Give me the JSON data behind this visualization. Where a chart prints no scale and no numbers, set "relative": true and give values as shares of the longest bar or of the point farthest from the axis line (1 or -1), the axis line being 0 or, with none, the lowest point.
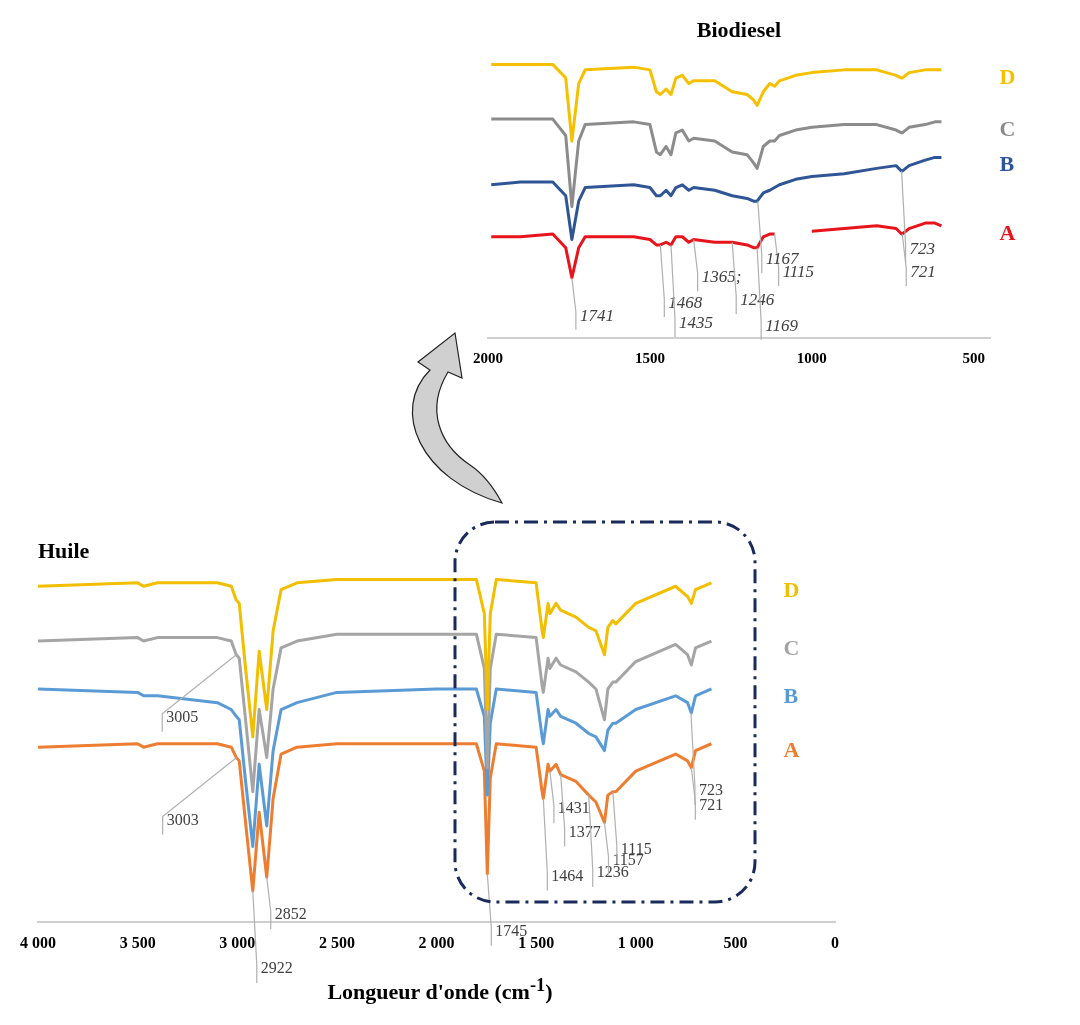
{
  "chart_data": [
    {
      "type": "line",
      "title": "Biodiesel",
      "relative": true,
      "xlim": [
        2000,
        450
      ],
      "xticks": [
        2000,
        1500,
        1000,
        500
      ],
      "tick_labels": "x",
      "grid": false,
      "legend": false,
      "marker": "none",
      "line_style": "solid",
      "x": [
        1990,
        1900,
        1800,
        1760,
        1741,
        1720,
        1700,
        1550,
        1500,
        1480,
        1468,
        1450,
        1435,
        1420,
        1400,
        1380,
        1365,
        1300,
        1246,
        1200,
        1180,
        1169,
        1167,
        1150,
        1130,
        1115,
        1100,
        1050,
        1000,
        900,
        800,
        740,
        723,
        721,
        700,
        650,
        620,
        600
      ],
      "series": [
        {
          "name": "D",
          "color": "#f5c000",
          "values": [
            1.0,
            1.0,
            1.0,
            0.95,
            0.72,
            0.93,
            0.98,
            0.99,
            0.98,
            0.9,
            0.89,
            0.91,
            0.89,
            0.95,
            0.96,
            0.93,
            0.94,
            0.94,
            0.9,
            0.89,
            0.87,
            0.85,
            0.85,
            0.9,
            0.93,
            0.92,
            0.94,
            0.96,
            0.97,
            0.98,
            0.98,
            0.96,
            0.95,
            0.95,
            0.97,
            0.98,
            0.98,
            0.98
          ]
        },
        {
          "name": "C",
          "color": "#8c8c8c",
          "values": [
            0.8,
            0.8,
            0.8,
            0.74,
            0.48,
            0.72,
            0.78,
            0.79,
            0.78,
            0.68,
            0.67,
            0.7,
            0.67,
            0.75,
            0.76,
            0.72,
            0.73,
            0.72,
            0.68,
            0.67,
            0.64,
            0.62,
            0.62,
            0.7,
            0.72,
            0.72,
            0.74,
            0.76,
            0.77,
            0.78,
            0.78,
            0.76,
            0.75,
            0.75,
            0.77,
            0.78,
            0.79,
            0.79
          ]
        },
        {
          "name": "B",
          "color": "#2f5597",
          "values": [
            0.56,
            0.57,
            0.57,
            0.52,
            0.36,
            0.5,
            0.55,
            0.56,
            0.55,
            0.52,
            0.52,
            0.54,
            0.52,
            0.55,
            0.56,
            0.54,
            0.55,
            0.54,
            0.52,
            0.51,
            0.5,
            0.5,
            0.5,
            0.53,
            0.54,
            0.55,
            0.56,
            0.58,
            0.59,
            0.6,
            0.62,
            0.63,
            0.61,
            0.61,
            0.63,
            0.65,
            0.66,
            0.66
          ]
        },
        {
          "name": "A",
          "color": "#e8141b",
          "values": [
            0.37,
            0.37,
            0.38,
            0.33,
            0.22,
            0.33,
            0.37,
            0.37,
            0.36,
            0.34,
            0.34,
            0.35,
            0.34,
            0.37,
            0.37,
            0.35,
            0.36,
            0.35,
            0.35,
            0.34,
            0.33,
            0.33,
            0.33,
            0.37,
            0.38,
            0.38,
            null,
            null,
            0.39,
            0.4,
            0.41,
            0.4,
            0.38,
            0.38,
            0.4,
            0.42,
            0.42,
            0.41
          ]
        }
      ],
      "annotations": [
        {
          "text": "1741",
          "x": 1741,
          "y": 0.22
        },
        {
          "text": "1468",
          "x": 1468,
          "y": 0.34
        },
        {
          "text": "1435",
          "x": 1435,
          "y": 0.34
        },
        {
          "text": "1365;",
          "x": 1365,
          "y": 0.36
        },
        {
          "text": "1246",
          "x": 1246,
          "y": 0.35
        },
        {
          "text": "1169",
          "x": 1169,
          "y": 0.33
        },
        {
          "text": "1115",
          "x": 1115,
          "y": 0.38
        },
        {
          "text": "1167",
          "x": 1167,
          "y": 0.5
        },
        {
          "text": "723",
          "x": 723,
          "y": 0.61
        },
        {
          "text": "721",
          "x": 721,
          "y": 0.38
        }
      ]
    },
    {
      "type": "line",
      "title": "Huile",
      "xlabel": "Longueur d'onde (cm$^{-1}$)",
      "relative": true,
      "xlim": [
        4000,
        0
      ],
      "xticks": [
        {
          "value": 4000,
          "label": "4 000"
        },
        {
          "value": 3500,
          "label": "3 500"
        },
        {
          "value": 3000,
          "label": "3 000"
        },
        {
          "value": 2500,
          "label": "2 500"
        },
        {
          "value": 2000,
          "label": "2 000"
        },
        {
          "value": 1500,
          "label": "1 500"
        },
        {
          "value": 1000,
          "label": "1 000"
        },
        500,
        0
      ],
      "tick_labels": "x",
      "grid": false,
      "legend": false,
      "marker": "none",
      "line_style": "solid",
      "x": [
        4000,
        3500,
        3470,
        3400,
        3100,
        3030,
        3005,
        2990,
        2960,
        2922,
        2890,
        2852,
        2820,
        2780,
        2700,
        2500,
        2000,
        1800,
        1760,
        1745,
        1730,
        1700,
        1500,
        1470,
        1464,
        1440,
        1431,
        1400,
        1377,
        1300,
        1236,
        1200,
        1157,
        1140,
        1115,
        1100,
        1000,
        800,
        740,
        721,
        700,
        620
      ],
      "series": [
        {
          "name": "D",
          "color": "#f2be00",
          "values": [
            0.98,
            0.99,
            0.98,
            0.99,
            0.99,
            0.98,
            0.94,
            0.93,
            0.75,
            0.54,
            0.79,
            0.62,
            0.85,
            0.97,
            0.99,
            1.0,
            1.0,
            1.0,
            0.9,
            0.62,
            0.9,
            1.0,
            0.99,
            0.85,
            0.83,
            0.93,
            0.9,
            0.93,
            0.91,
            0.89,
            0.86,
            0.85,
            0.78,
            0.86,
            0.88,
            0.87,
            0.93,
            0.98,
            0.95,
            0.93,
            0.97,
            0.99
          ]
        },
        {
          "name": "C",
          "color": "#a5a5a5",
          "values": [
            0.82,
            0.83,
            0.82,
            0.83,
            0.83,
            0.82,
            0.78,
            0.77,
            0.6,
            0.38,
            0.62,
            0.48,
            0.68,
            0.8,
            0.82,
            0.84,
            0.84,
            0.84,
            0.74,
            0.45,
            0.74,
            0.84,
            0.83,
            0.69,
            0.67,
            0.77,
            0.74,
            0.77,
            0.75,
            0.73,
            0.7,
            0.68,
            0.59,
            0.68,
            0.7,
            0.7,
            0.76,
            0.81,
            0.78,
            0.75,
            0.8,
            0.82
          ]
        },
        {
          "name": "B",
          "color": "#5b9bd5",
          "values": [
            0.68,
            0.67,
            0.66,
            0.66,
            0.64,
            0.62,
            0.6,
            0.59,
            0.42,
            0.22,
            0.46,
            0.28,
            0.5,
            0.62,
            0.64,
            0.67,
            0.68,
            0.68,
            0.6,
            0.37,
            0.58,
            0.68,
            0.67,
            0.54,
            0.52,
            0.62,
            0.6,
            0.62,
            0.6,
            0.58,
            0.55,
            0.54,
            0.5,
            0.56,
            0.58,
            0.58,
            0.62,
            0.66,
            0.64,
            0.61,
            0.66,
            0.68
          ]
        },
        {
          "name": "A",
          "color": "#ed7d31",
          "values": [
            0.51,
            0.52,
            0.51,
            0.52,
            0.52,
            0.51,
            0.48,
            0.47,
            0.3,
            0.09,
            0.32,
            0.13,
            0.36,
            0.49,
            0.51,
            0.52,
            0.52,
            0.52,
            0.44,
            0.14,
            0.42,
            0.52,
            0.51,
            0.38,
            0.36,
            0.46,
            0.44,
            0.46,
            0.43,
            0.41,
            0.37,
            0.35,
            0.29,
            0.37,
            0.38,
            0.38,
            0.44,
            0.49,
            0.47,
            0.45,
            0.5,
            0.52
          ]
        }
      ],
      "annotations": [
        {
          "text": "3005",
          "x": 3005,
          "y": 0.78
        },
        {
          "text": "3003",
          "x": 3003,
          "y": 0.48
        },
        {
          "text": "2922",
          "x": 2922,
          "y": 0.09
        },
        {
          "text": "2852",
          "x": 2852,
          "y": 0.13
        },
        {
          "text": "1745",
          "x": 1745,
          "y": 0.14
        },
        {
          "text": "1464",
          "x": 1464,
          "y": 0.36
        },
        {
          "text": "1431",
          "x": 1431,
          "y": 0.44
        },
        {
          "text": "1377",
          "x": 1377,
          "y": 0.43
        },
        {
          "text": "1236",
          "x": 1236,
          "y": 0.37
        },
        {
          "text": "1157",
          "x": 1157,
          "y": 0.29
        },
        {
          "text": "1115",
          "x": 1115,
          "y": 0.38
        },
        {
          "text": "723",
          "x": 723,
          "y": 0.61
        },
        {
          "text": "721",
          "x": 721,
          "y": 0.45
        }
      ]
    }
  ]
}
